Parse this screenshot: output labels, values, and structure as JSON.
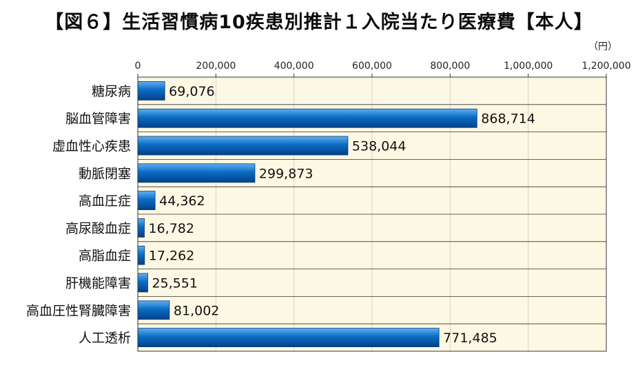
{
  "chart_data": {
    "type": "bar",
    "orientation": "horizontal",
    "title": "【図６】生活習慣病10疾患別推計１入院当たり医療費【本人】",
    "unit": "（円）",
    "categories": [
      "糖尿病",
      "脳血管障害",
      "虚血性心疾患",
      "動脈閉塞",
      "高血圧症",
      "高尿酸血症",
      "高脂血症",
      "肝機能障害",
      "高血圧性腎臓障害",
      "人工透析"
    ],
    "values": [
      69076,
      868714,
      538044,
      299873,
      44362,
      16782,
      17262,
      25551,
      81002,
      771485
    ],
    "value_labels": [
      "69,076",
      "868,714",
      "538,044",
      "299,873",
      "44,362",
      "16,782",
      "17,262",
      "25,551",
      "81,002",
      "771,485"
    ],
    "xlim": [
      0,
      1200000
    ],
    "xticks": [
      0,
      200000,
      400000,
      600000,
      800000,
      1000000,
      1200000
    ],
    "xtick_labels": [
      "0",
      "200,000",
      "400,000",
      "600,000",
      "800,000",
      "1,000,000",
      "1,200,000"
    ],
    "grid": true,
    "legend": "none",
    "colors": {
      "bar": "#0a6cc4",
      "bar_dark": "#04418a",
      "bar_light": "#5fb0f0",
      "background": "#fdf8e3",
      "grid": "#c8c0a8",
      "border": "#333333"
    }
  }
}
